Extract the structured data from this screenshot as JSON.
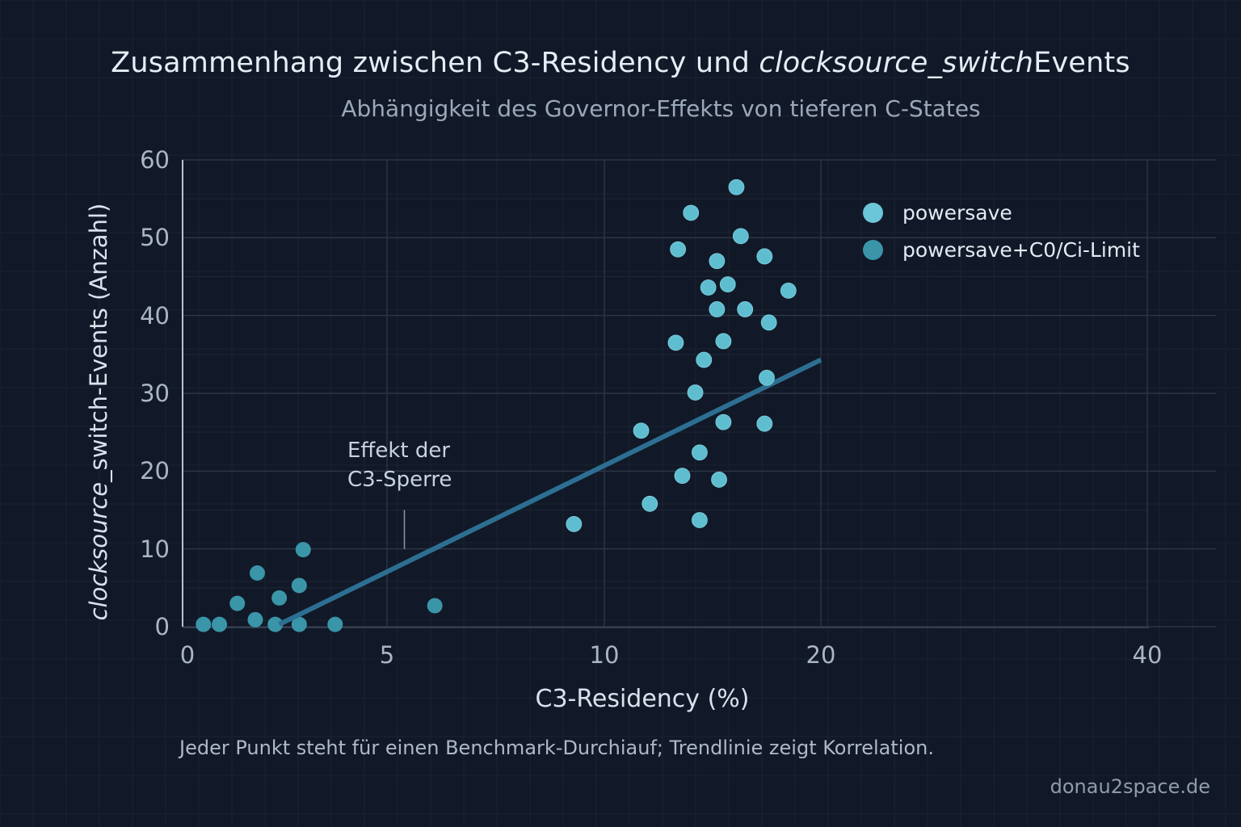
{
  "chart_data": {
    "type": "scatter",
    "title_parts": [
      "Zusammenhang zwischen C3-Residency und ",
      "clocksource_switch",
      "Events"
    ],
    "title": "Zusammenhang zwischen C3-Residency und clocksource_switchEvents",
    "subtitle": "Abhängigkeit des Governor-Effekts von tieferen C-States",
    "xlabel": "C3-Residency (%)",
    "ylabel_parts": [
      "clocksource",
      "_switch-Events (Anzahl)"
    ],
    "ylabel": "clocksource_switch-Events (Anzahl)",
    "x_ticks": [
      0,
      5,
      10,
      20,
      40
    ],
    "x_tick_labels": [
      "0",
      "5",
      "10",
      "20",
      "40"
    ],
    "x_scale_note": "non-linear (piecewise) axis",
    "y_ticks": [
      0,
      10,
      20,
      30,
      40,
      50,
      60
    ],
    "y_tick_labels": [
      "0",
      "10",
      "20",
      "30",
      "40",
      "50",
      "60"
    ],
    "xlim": [
      0,
      40
    ],
    "ylim": [
      0,
      60
    ],
    "grid": true,
    "legend_position": "top-right",
    "series": [
      {
        "name": "powersave",
        "color": "#5fbdd0",
        "points": [
          [
            9.3,
            13.2
          ],
          [
            11.7,
            25.2
          ],
          [
            12.1,
            15.8
          ],
          [
            13.3,
            36.5
          ],
          [
            13.4,
            48.5
          ],
          [
            13.6,
            19.4
          ],
          [
            14.0,
            53.2
          ],
          [
            14.2,
            30.1
          ],
          [
            14.4,
            13.7
          ],
          [
            14.4,
            22.4
          ],
          [
            14.6,
            34.3
          ],
          [
            14.8,
            43.6
          ],
          [
            15.2,
            40.8
          ],
          [
            15.2,
            47.0
          ],
          [
            15.3,
            18.9
          ],
          [
            15.5,
            26.3
          ],
          [
            15.5,
            36.7
          ],
          [
            15.7,
            44.0
          ],
          [
            16.1,
            56.5
          ],
          [
            16.3,
            50.2
          ],
          [
            16.5,
            40.8
          ],
          [
            17.4,
            26.1
          ],
          [
            17.4,
            47.6
          ],
          [
            17.5,
            32.0
          ],
          [
            17.6,
            39.1
          ],
          [
            18.5,
            43.2
          ]
        ]
      },
      {
        "name": "powersave+C0/Ci-Limit",
        "color": "#3a95a8",
        "points": [
          [
            0.4,
            0.3
          ],
          [
            0.8,
            0.3
          ],
          [
            1.25,
            3.0
          ],
          [
            1.75,
            6.9
          ],
          [
            1.7,
            0.9
          ],
          [
            2.2,
            0.3
          ],
          [
            2.3,
            3.7
          ],
          [
            2.8,
            0.3
          ],
          [
            2.8,
            5.3
          ],
          [
            2.9,
            9.9
          ],
          [
            3.7,
            0.3
          ],
          [
            6.1,
            2.7
          ]
        ]
      }
    ],
    "trendline": {
      "color": "#2d6f92",
      "from": [
        2.3,
        0.3
      ],
      "to": [
        20,
        34.3
      ]
    },
    "annotations": [
      {
        "text_lines": [
          "Effekt der",
          "C3-Sperre"
        ],
        "pointer_x": 5.4,
        "pointer_y_from": 10,
        "pointer_y_to": 15
      }
    ]
  },
  "footnote": "Jeder Punkt steht für einen Benchmark-Durchiauf; Trendlinie zeigt Korrelation.",
  "credit": "donau2space.de"
}
